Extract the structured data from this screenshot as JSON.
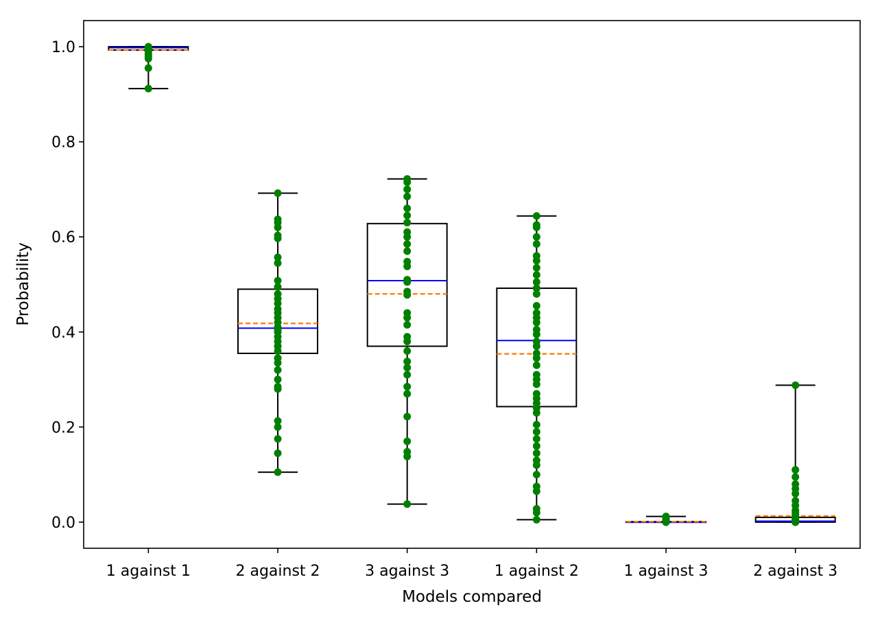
{
  "chart_data": {
    "type": "box",
    "xlabel": "Models compared",
    "ylabel": "Probability",
    "ylim": [
      -0.055,
      1.055
    ],
    "yticks": [
      0.0,
      0.2,
      0.4,
      0.6,
      0.8,
      1.0
    ],
    "ytick_labels": [
      "0.0",
      "0.2",
      "0.4",
      "0.6",
      "0.8",
      "1.0"
    ],
    "grid": false,
    "legend": "none",
    "colors": {
      "box": "#000000",
      "median": "#0000ff",
      "mean": "#ff7f0e",
      "points": "#008000"
    },
    "categories": [
      "1 against 1",
      "2 against 2",
      "3 against 3",
      "1 against 2",
      "1 against 3",
      "2 against 3"
    ],
    "boxes": [
      {
        "whisker_low": 0.912,
        "q1": 0.993,
        "median": 0.998,
        "q3": 1.0,
        "whisker_high": 1.0,
        "mean": 0.993,
        "points": [
          1.0,
          1.0,
          0.999,
          0.998,
          0.997,
          0.996,
          0.993,
          0.99,
          0.985,
          0.98,
          0.975,
          0.955,
          0.912
        ]
      },
      {
        "whisker_low": 0.105,
        "q1": 0.355,
        "median": 0.408,
        "q3": 0.49,
        "whisker_high": 0.692,
        "mean": 0.418,
        "points": [
          0.692,
          0.637,
          0.63,
          0.62,
          0.603,
          0.597,
          0.557,
          0.545,
          0.508,
          0.495,
          0.48,
          0.47,
          0.46,
          0.448,
          0.44,
          0.43,
          0.42,
          0.41,
          0.405,
          0.4,
          0.39,
          0.38,
          0.37,
          0.36,
          0.345,
          0.335,
          0.32,
          0.3,
          0.285,
          0.28,
          0.213,
          0.2,
          0.175,
          0.145,
          0.105
        ]
      },
      {
        "whisker_low": 0.038,
        "q1": 0.37,
        "median": 0.508,
        "q3": 0.628,
        "whisker_high": 0.722,
        "mean": 0.48,
        "points": [
          0.722,
          0.715,
          0.7,
          0.685,
          0.66,
          0.645,
          0.63,
          0.61,
          0.6,
          0.585,
          0.57,
          0.548,
          0.538,
          0.51,
          0.505,
          0.485,
          0.478,
          0.44,
          0.43,
          0.415,
          0.39,
          0.38,
          0.36,
          0.338,
          0.325,
          0.31,
          0.285,
          0.27,
          0.222,
          0.17,
          0.148,
          0.138,
          0.038
        ]
      },
      {
        "whisker_low": 0.005,
        "q1": 0.243,
        "median": 0.382,
        "q3": 0.492,
        "whisker_high": 0.644,
        "mean": 0.354,
        "points": [
          0.644,
          0.625,
          0.62,
          0.6,
          0.585,
          0.56,
          0.55,
          0.535,
          0.52,
          0.505,
          0.492,
          0.48,
          0.455,
          0.44,
          0.43,
          0.42,
          0.405,
          0.395,
          0.38,
          0.37,
          0.355,
          0.345,
          0.33,
          0.31,
          0.3,
          0.29,
          0.27,
          0.26,
          0.25,
          0.24,
          0.23,
          0.205,
          0.19,
          0.175,
          0.16,
          0.145,
          0.13,
          0.12,
          0.1,
          0.075,
          0.065,
          0.028,
          0.02,
          0.005
        ]
      },
      {
        "whisker_low": 0.0,
        "q1": 0.0,
        "median": 0.0,
        "q3": 0.001,
        "whisker_high": 0.012,
        "mean": 0.001,
        "points": [
          0.012,
          0.008,
          0.005,
          0.003,
          0.002,
          0.001,
          0.0,
          0.0,
          0.0,
          0.0
        ]
      },
      {
        "whisker_low": 0.0,
        "q1": 0.0,
        "median": 0.002,
        "q3": 0.01,
        "whisker_high": 0.288,
        "mean": 0.013,
        "points": [
          0.288,
          0.11,
          0.095,
          0.08,
          0.07,
          0.06,
          0.045,
          0.035,
          0.025,
          0.02,
          0.015,
          0.012,
          0.008,
          0.005,
          0.003,
          0.0,
          0.0,
          0.0,
          0.0
        ]
      }
    ]
  }
}
